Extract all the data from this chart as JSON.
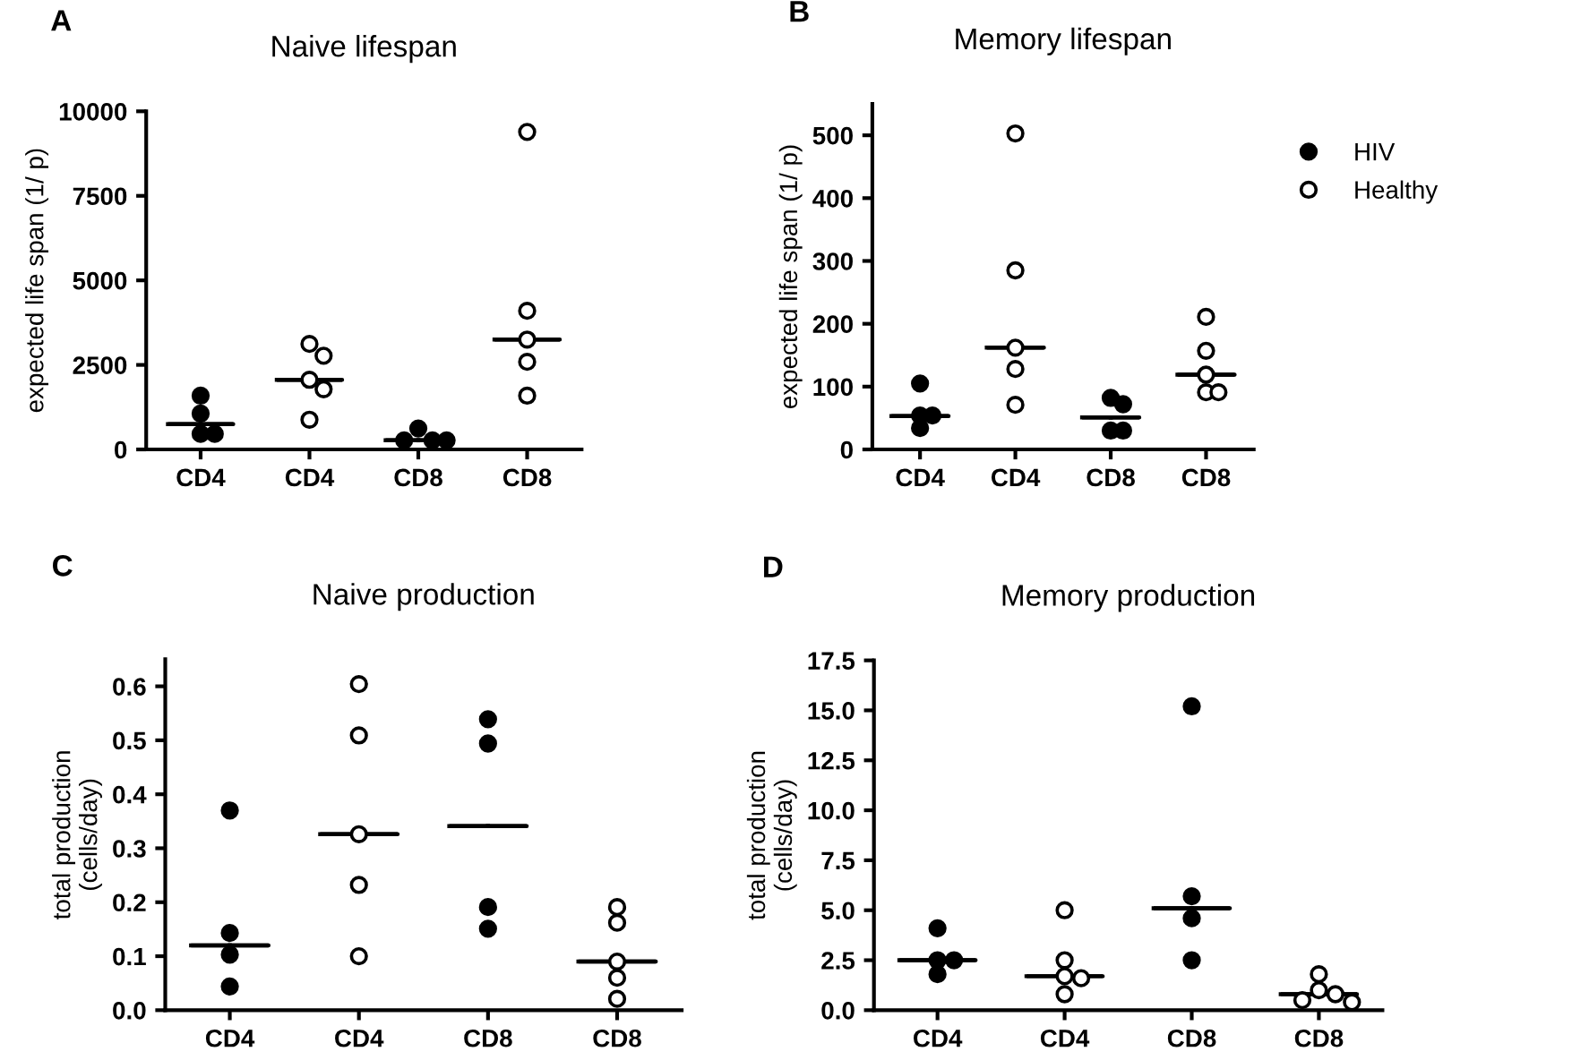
{
  "chart_data": [
    {
      "type": "scatter",
      "title": "Naive lifespan",
      "ylabel": "expected life span (1/ p)",
      "annotations": [
        "A"
      ],
      "categories": [
        "CD4",
        "CD4",
        "CD8",
        "CD8"
      ],
      "ylim": [
        0,
        10000
      ],
      "yticks": [
        0,
        2500,
        5000,
        7500,
        10000
      ],
      "grid": false,
      "legend": false,
      "series": [
        {
          "color": "#000000",
          "marker": "circle",
          "values": [
            1590,
            null,
            620,
            null
          ]
        },
        {
          "color": "#000000",
          "marker": "circle",
          "values": [
            1060,
            null,
            270,
            null
          ]
        },
        {
          "color": "#000000",
          "marker": "circle",
          "values": [
            460,
            null,
            270,
            null
          ]
        },
        {
          "color": "#000000",
          "marker": "circle",
          "values": [
            460,
            null,
            270,
            null
          ]
        },
        {
          "color": "#ffffff",
          "marker": "circle",
          "values": [
            null,
            3120,
            null,
            9390
          ]
        },
        {
          "color": "#ffffff",
          "marker": "circle",
          "values": [
            null,
            2770,
            null,
            4100
          ]
        },
        {
          "color": "#ffffff",
          "marker": "circle",
          "values": [
            null,
            2060,
            null,
            3250
          ]
        },
        {
          "color": "#ffffff",
          "marker": "circle",
          "values": [
            null,
            1780,
            null,
            2590
          ]
        },
        {
          "color": "#ffffff",
          "marker": "circle",
          "values": [
            null,
            880,
            null,
            1590
          ]
        },
        {
          "type": "box",
          "color": "#000000",
          "boxes": [
            {
              "low": 750,
              "q1": 750,
              "median": 750,
              "q3": 750,
              "high": 750
            },
            {
              "low": 2060,
              "q1": 2060,
              "median": 2060,
              "q3": 2060,
              "high": 2060
            },
            {
              "low": 270,
              "q1": 270,
              "median": 270,
              "q3": 270,
              "high": 270
            },
            {
              "low": 3250,
              "q1": 3250,
              "median": 3250,
              "q3": 3250,
              "high": 3250
            }
          ]
        }
      ]
    },
    {
      "type": "scatter",
      "title": "Memory lifespan",
      "ylabel": "expected life span (1/ p)",
      "annotations": [
        "B"
      ],
      "categories": [
        "CD4",
        "CD4",
        "CD8",
        "CD8"
      ],
      "ylim": [
        0,
        550
      ],
      "yticks": [
        0,
        100,
        200,
        300,
        400,
        500
      ],
      "grid": false,
      "legend": "right",
      "series": [
        {
          "name": "HIV",
          "color": "#000000",
          "marker": "circle",
          "values": [
            105,
            null,
            82,
            null
          ]
        },
        {
          "color": "#000000",
          "marker": "circle",
          "values": [
            54,
            null,
            72,
            null
          ]
        },
        {
          "color": "#000000",
          "marker": "circle",
          "values": [
            54,
            null,
            30,
            null
          ]
        },
        {
          "color": "#000000",
          "marker": "circle",
          "values": [
            34,
            null,
            30,
            null
          ]
        },
        {
          "name": "Healthy",
          "color": "#ffffff",
          "marker": "circle",
          "values": [
            null,
            503,
            null,
            211
          ]
        },
        {
          "color": "#ffffff",
          "marker": "circle",
          "values": [
            null,
            285,
            null,
            157
          ]
        },
        {
          "color": "#ffffff",
          "marker": "circle",
          "values": [
            null,
            162,
            null,
            119
          ]
        },
        {
          "color": "#ffffff",
          "marker": "circle",
          "values": [
            null,
            128,
            null,
            91
          ]
        },
        {
          "color": "#ffffff",
          "marker": "circle",
          "values": [
            null,
            71,
            null,
            91
          ]
        },
        {
          "type": "box",
          "color": "#000000",
          "boxes": [
            {
              "low": 53,
              "q1": 53,
              "median": 53,
              "q3": 53,
              "high": 53
            },
            {
              "low": 162,
              "q1": 162,
              "median": 162,
              "q3": 162,
              "high": 162
            },
            {
              "low": 51,
              "q1": 51,
              "median": 51,
              "q3": 51,
              "high": 51
            },
            {
              "low": 119,
              "q1": 119,
              "median": 119,
              "q3": 119,
              "high": 119
            }
          ]
        }
      ]
    },
    {
      "type": "scatter",
      "title": "Naive production",
      "ylabel": "total production\n(cells/day)",
      "annotations": [
        "C"
      ],
      "categories": [
        "CD4",
        "CD4",
        "CD8",
        "CD8"
      ],
      "ylim": [
        0,
        0.65
      ],
      "yticks": [
        {
          "value": 0,
          "label": "0.0"
        },
        0.1,
        0.2,
        0.3,
        0.4,
        0.5,
        0.6
      ],
      "grid": false,
      "legend": false,
      "series": [
        {
          "color": "#000000",
          "marker": "circle",
          "values": [
            0.37,
            null,
            0.539,
            null
          ]
        },
        {
          "color": "#000000",
          "marker": "circle",
          "values": [
            0.143,
            null,
            0.494,
            null
          ]
        },
        {
          "color": "#000000",
          "marker": "circle",
          "values": [
            0.103,
            null,
            0.191,
            null
          ]
        },
        {
          "color": "#000000",
          "marker": "circle",
          "values": [
            0.044,
            null,
            0.151,
            null
          ]
        },
        {
          "color": "#ffffff",
          "marker": "circle",
          "values": [
            null,
            0.604,
            null,
            0.191
          ]
        },
        {
          "color": "#ffffff",
          "marker": "circle",
          "values": [
            null,
            0.509,
            null,
            0.162
          ]
        },
        {
          "color": "#ffffff",
          "marker": "circle",
          "values": [
            null,
            0.326,
            null,
            0.09
          ]
        },
        {
          "color": "#ffffff",
          "marker": "circle",
          "values": [
            null,
            0.232,
            null,
            0.06
          ]
        },
        {
          "color": "#ffffff",
          "marker": "circle",
          "values": [
            null,
            0.1,
            null,
            0.021
          ]
        },
        {
          "type": "box",
          "color": "#000000",
          "boxes": [
            {
              "low": 0.12,
              "q1": 0.12,
              "median": 0.12,
              "q3": 0.12,
              "high": 0.12
            },
            {
              "low": 0.326,
              "q1": 0.326,
              "median": 0.326,
              "q3": 0.326,
              "high": 0.326
            },
            {
              "low": 0.341,
              "q1": 0.341,
              "median": 0.341,
              "q3": 0.341,
              "high": 0.341
            },
            {
              "low": 0.09,
              "q1": 0.09,
              "median": 0.09,
              "q3": 0.09,
              "high": 0.09
            }
          ]
        }
      ]
    },
    {
      "type": "scatter",
      "title": "Memory production",
      "ylabel": "total production\n(cells/day)",
      "annotations": [
        "D"
      ],
      "categories": [
        "CD4",
        "CD4",
        "CD8",
        "CD8"
      ],
      "ylim": [
        0,
        17.5
      ],
      "yticks": [
        {
          "value": 0,
          "label": "0.0"
        },
        2.5,
        {
          "value": 5,
          "label": "5.0"
        },
        7.5,
        {
          "value": 10,
          "label": "10.0"
        },
        12.5,
        {
          "value": 15,
          "label": "15.0"
        },
        17.5
      ],
      "grid": false,
      "legend": false,
      "series": [
        {
          "color": "#000000",
          "marker": "circle",
          "values": [
            4.1,
            null,
            15.2,
            null
          ]
        },
        {
          "color": "#000000",
          "marker": "circle",
          "values": [
            2.5,
            null,
            5.7,
            null
          ]
        },
        {
          "color": "#000000",
          "marker": "circle",
          "values": [
            2.5,
            null,
            4.6,
            null
          ]
        },
        {
          "color": "#000000",
          "marker": "circle",
          "values": [
            1.8,
            null,
            2.5,
            null
          ]
        },
        {
          "color": "#ffffff",
          "marker": "circle",
          "values": [
            null,
            5.0,
            null,
            1.8
          ]
        },
        {
          "color": "#ffffff",
          "marker": "circle",
          "values": [
            null,
            2.5,
            null,
            1.0
          ]
        },
        {
          "color": "#ffffff",
          "marker": "circle",
          "values": [
            null,
            1.7,
            null,
            0.8
          ]
        },
        {
          "color": "#ffffff",
          "marker": "circle",
          "values": [
            null,
            1.6,
            null,
            0.5
          ]
        },
        {
          "color": "#ffffff",
          "marker": "circle",
          "values": [
            null,
            0.8,
            null,
            0.4
          ]
        },
        {
          "type": "box",
          "color": "#000000",
          "boxes": [
            {
              "low": 2.5,
              "q1": 2.5,
              "median": 2.5,
              "q3": 2.5,
              "high": 2.5
            },
            {
              "low": 1.7,
              "q1": 1.7,
              "median": 1.7,
              "q3": 1.7,
              "high": 1.7
            },
            {
              "low": 5.1,
              "q1": 5.1,
              "median": 5.1,
              "q3": 5.1,
              "high": 5.1
            },
            {
              "low": 0.8,
              "q1": 0.8,
              "median": 0.8,
              "q3": 0.8,
              "high": 0.8
            }
          ]
        }
      ]
    }
  ]
}
